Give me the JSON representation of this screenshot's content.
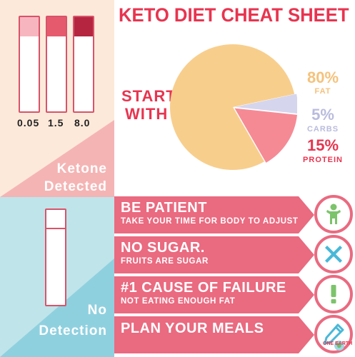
{
  "title": "KETO DIET CHEAT SHEET",
  "start_with": {
    "line1": "START",
    "line2": "WITH"
  },
  "strips": [
    {
      "label": "0.05",
      "color": "#f7b6bf"
    },
    {
      "label": "1.5",
      "color": "#e65a6e"
    },
    {
      "label": "8.0",
      "color": "#b52540"
    }
  ],
  "ketone": {
    "line1": "Ketone",
    "line2": "Detected"
  },
  "no_detection": {
    "line1": "No",
    "line2": "Detection"
  },
  "chart_data": {
    "type": "pie",
    "slices": [
      {
        "name": "Fat",
        "value": 80,
        "color": "#f8ce8d",
        "pct_label": "80%",
        "label": "FAT"
      },
      {
        "name": "Carbs",
        "value": 5,
        "color": "#d5d5ee",
        "pct_label": "5%",
        "label": "CARBS"
      },
      {
        "name": "Protein",
        "value": 15,
        "color": "#f58a95",
        "pct_label": "15%",
        "label": "PROTEIN"
      }
    ]
  },
  "rows": [
    {
      "main": "BE PATIENT",
      "sub": "TAKE YOUR TIME FOR BODY TO ADJUST",
      "icon": "person-icon",
      "color": "#ea6a80"
    },
    {
      "main": "NO SUGAR.",
      "sub": "FRUITS ARE SUGAR",
      "icon": "x-icon",
      "color": "#ea6a80"
    },
    {
      "main": "#1 CAUSE OF FAILURE",
      "sub": "NOT EATING ENOUGH FAT",
      "icon": "exclamation-icon",
      "color": "#ea6a80"
    },
    {
      "main": "PLAN YOUR MEALS",
      "sub": "",
      "icon": "pencil-icon",
      "color": "#ea6a80"
    }
  ],
  "colors": {
    "title": "#e8344f",
    "fat_text": "#f5c27c",
    "carbs_text": "#b9bcdd",
    "protein_text": "#e8344f",
    "icon_blue": "#49b8d8",
    "icon_green": "#7cc36b"
  },
  "brand": {
    "text": "ONE EARTH"
  }
}
